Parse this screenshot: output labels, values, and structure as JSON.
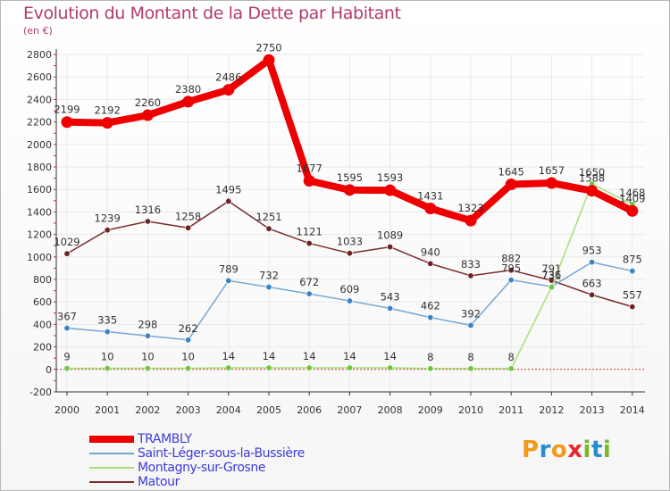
{
  "header": {
    "title": "Evolution du Montant de la Dette par Habitant",
    "unit": "(en €)"
  },
  "logo": {
    "letters": [
      "P",
      "r",
      "o",
      "x",
      "i",
      "t",
      "i"
    ],
    "colors": [
      "#f39a1d",
      "#2a8ccf",
      "#f39a1d",
      "#e8262e",
      "#79b928",
      "#2a8ccf",
      "#79b928"
    ]
  },
  "colors": {
    "title": "#b23a70",
    "legend_text": "#3c3cd8",
    "axis": "#333333",
    "grid": "#e9e9e9",
    "zero_line": "#cc3333"
  },
  "chart_data": {
    "type": "line",
    "x": [
      2000,
      2001,
      2002,
      2003,
      2004,
      2005,
      2006,
      2007,
      2008,
      2009,
      2010,
      2011,
      2012,
      2013,
      2014
    ],
    "ylim": [
      -200,
      2800
    ],
    "yticks": [
      -200,
      0,
      200,
      400,
      600,
      800,
      1000,
      1200,
      1400,
      1600,
      1800,
      2000,
      2200,
      2400,
      2600,
      2800
    ],
    "grid": true,
    "legend_position": "bottom-left",
    "series": [
      {
        "name": "TRAMBLY",
        "color": "#ee0000",
        "marker": "#ee0000",
        "width": 8,
        "values": [
          2199,
          2192,
          2260,
          2380,
          2486,
          2750,
          1677,
          1595,
          1593,
          1431,
          1323,
          1645,
          1657,
          1588,
          1409
        ]
      },
      {
        "name": "Saint-Léger-sous-la-Bussière",
        "color": "#74a7d6",
        "marker": "#3b84c4",
        "width": 1.5,
        "values": [
          367,
          335,
          298,
          262,
          789,
          732,
          672,
          609,
          543,
          462,
          392,
          795,
          736,
          953,
          875
        ]
      },
      {
        "name": "Montagny-sur-Grosne",
        "color": "#a6e07a",
        "marker": "#71c73b",
        "width": 1.5,
        "values": [
          9,
          10,
          10,
          10,
          14,
          14,
          14,
          14,
          14,
          8,
          8,
          8,
          731,
          1650,
          1468
        ]
      },
      {
        "name": "Matour",
        "color": "#7a2d2d",
        "marker": "#6e2222",
        "width": 1.5,
        "values": [
          1029,
          1239,
          1316,
          1258,
          1495,
          1251,
          1121,
          1033,
          1089,
          940,
          833,
          882,
          791,
          663,
          557
        ]
      }
    ]
  }
}
